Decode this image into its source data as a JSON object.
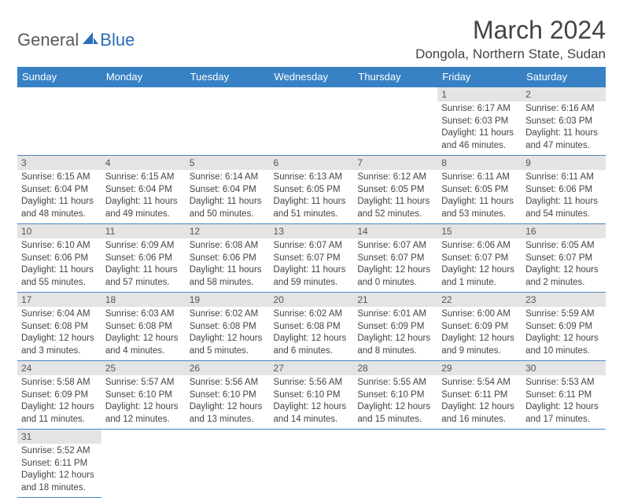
{
  "brand": {
    "part1": "General",
    "part2": "Blue"
  },
  "title": "March 2024",
  "location": "Dongola, Northern State, Sudan",
  "colors": {
    "header_bg": "#3781c4",
    "header_text": "#ffffff",
    "daybar_bg": "#e4e4e4",
    "row_border": "#4a87c4",
    "logo_gray": "#5a5a5a",
    "logo_blue": "#2a6db8"
  },
  "day_headers": [
    "Sunday",
    "Monday",
    "Tuesday",
    "Wednesday",
    "Thursday",
    "Friday",
    "Saturday"
  ],
  "weeks": [
    [
      {
        "num": "",
        "lines": []
      },
      {
        "num": "",
        "lines": []
      },
      {
        "num": "",
        "lines": []
      },
      {
        "num": "",
        "lines": []
      },
      {
        "num": "",
        "lines": []
      },
      {
        "num": "1",
        "lines": [
          "Sunrise: 6:17 AM",
          "Sunset: 6:03 PM",
          "Daylight: 11 hours and 46 minutes."
        ]
      },
      {
        "num": "2",
        "lines": [
          "Sunrise: 6:16 AM",
          "Sunset: 6:03 PM",
          "Daylight: 11 hours and 47 minutes."
        ]
      }
    ],
    [
      {
        "num": "3",
        "lines": [
          "Sunrise: 6:15 AM",
          "Sunset: 6:04 PM",
          "Daylight: 11 hours and 48 minutes."
        ]
      },
      {
        "num": "4",
        "lines": [
          "Sunrise: 6:15 AM",
          "Sunset: 6:04 PM",
          "Daylight: 11 hours and 49 minutes."
        ]
      },
      {
        "num": "5",
        "lines": [
          "Sunrise: 6:14 AM",
          "Sunset: 6:04 PM",
          "Daylight: 11 hours and 50 minutes."
        ]
      },
      {
        "num": "6",
        "lines": [
          "Sunrise: 6:13 AM",
          "Sunset: 6:05 PM",
          "Daylight: 11 hours and 51 minutes."
        ]
      },
      {
        "num": "7",
        "lines": [
          "Sunrise: 6:12 AM",
          "Sunset: 6:05 PM",
          "Daylight: 11 hours and 52 minutes."
        ]
      },
      {
        "num": "8",
        "lines": [
          "Sunrise: 6:11 AM",
          "Sunset: 6:05 PM",
          "Daylight: 11 hours and 53 minutes."
        ]
      },
      {
        "num": "9",
        "lines": [
          "Sunrise: 6:11 AM",
          "Sunset: 6:06 PM",
          "Daylight: 11 hours and 54 minutes."
        ]
      }
    ],
    [
      {
        "num": "10",
        "lines": [
          "Sunrise: 6:10 AM",
          "Sunset: 6:06 PM",
          "Daylight: 11 hours and 55 minutes."
        ]
      },
      {
        "num": "11",
        "lines": [
          "Sunrise: 6:09 AM",
          "Sunset: 6:06 PM",
          "Daylight: 11 hours and 57 minutes."
        ]
      },
      {
        "num": "12",
        "lines": [
          "Sunrise: 6:08 AM",
          "Sunset: 6:06 PM",
          "Daylight: 11 hours and 58 minutes."
        ]
      },
      {
        "num": "13",
        "lines": [
          "Sunrise: 6:07 AM",
          "Sunset: 6:07 PM",
          "Daylight: 11 hours and 59 minutes."
        ]
      },
      {
        "num": "14",
        "lines": [
          "Sunrise: 6:07 AM",
          "Sunset: 6:07 PM",
          "Daylight: 12 hours and 0 minutes."
        ]
      },
      {
        "num": "15",
        "lines": [
          "Sunrise: 6:06 AM",
          "Sunset: 6:07 PM",
          "Daylight: 12 hours and 1 minute."
        ]
      },
      {
        "num": "16",
        "lines": [
          "Sunrise: 6:05 AM",
          "Sunset: 6:07 PM",
          "Daylight: 12 hours and 2 minutes."
        ]
      }
    ],
    [
      {
        "num": "17",
        "lines": [
          "Sunrise: 6:04 AM",
          "Sunset: 6:08 PM",
          "Daylight: 12 hours and 3 minutes."
        ]
      },
      {
        "num": "18",
        "lines": [
          "Sunrise: 6:03 AM",
          "Sunset: 6:08 PM",
          "Daylight: 12 hours and 4 minutes."
        ]
      },
      {
        "num": "19",
        "lines": [
          "Sunrise: 6:02 AM",
          "Sunset: 6:08 PM",
          "Daylight: 12 hours and 5 minutes."
        ]
      },
      {
        "num": "20",
        "lines": [
          "Sunrise: 6:02 AM",
          "Sunset: 6:08 PM",
          "Daylight: 12 hours and 6 minutes."
        ]
      },
      {
        "num": "21",
        "lines": [
          "Sunrise: 6:01 AM",
          "Sunset: 6:09 PM",
          "Daylight: 12 hours and 8 minutes."
        ]
      },
      {
        "num": "22",
        "lines": [
          "Sunrise: 6:00 AM",
          "Sunset: 6:09 PM",
          "Daylight: 12 hours and 9 minutes."
        ]
      },
      {
        "num": "23",
        "lines": [
          "Sunrise: 5:59 AM",
          "Sunset: 6:09 PM",
          "Daylight: 12 hours and 10 minutes."
        ]
      }
    ],
    [
      {
        "num": "24",
        "lines": [
          "Sunrise: 5:58 AM",
          "Sunset: 6:09 PM",
          "Daylight: 12 hours and 11 minutes."
        ]
      },
      {
        "num": "25",
        "lines": [
          "Sunrise: 5:57 AM",
          "Sunset: 6:10 PM",
          "Daylight: 12 hours and 12 minutes."
        ]
      },
      {
        "num": "26",
        "lines": [
          "Sunrise: 5:56 AM",
          "Sunset: 6:10 PM",
          "Daylight: 12 hours and 13 minutes."
        ]
      },
      {
        "num": "27",
        "lines": [
          "Sunrise: 5:56 AM",
          "Sunset: 6:10 PM",
          "Daylight: 12 hours and 14 minutes."
        ]
      },
      {
        "num": "28",
        "lines": [
          "Sunrise: 5:55 AM",
          "Sunset: 6:10 PM",
          "Daylight: 12 hours and 15 minutes."
        ]
      },
      {
        "num": "29",
        "lines": [
          "Sunrise: 5:54 AM",
          "Sunset: 6:11 PM",
          "Daylight: 12 hours and 16 minutes."
        ]
      },
      {
        "num": "30",
        "lines": [
          "Sunrise: 5:53 AM",
          "Sunset: 6:11 PM",
          "Daylight: 12 hours and 17 minutes."
        ]
      }
    ],
    [
      {
        "num": "31",
        "lines": [
          "Sunrise: 5:52 AM",
          "Sunset: 6:11 PM",
          "Daylight: 12 hours and 18 minutes."
        ]
      },
      {
        "num": "",
        "lines": []
      },
      {
        "num": "",
        "lines": []
      },
      {
        "num": "",
        "lines": []
      },
      {
        "num": "",
        "lines": []
      },
      {
        "num": "",
        "lines": []
      },
      {
        "num": "",
        "lines": []
      }
    ]
  ]
}
